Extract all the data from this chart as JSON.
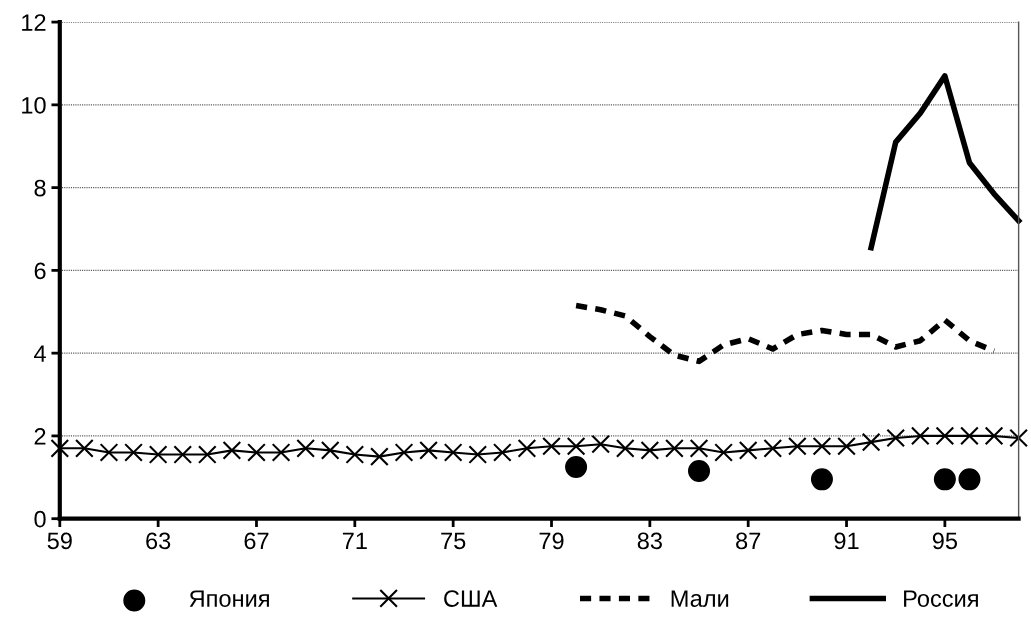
{
  "chart_data": {
    "type": "line",
    "xlim": [
      59,
      98
    ],
    "xticks": [
      59,
      63,
      67,
      71,
      75,
      79,
      83,
      87,
      91,
      95
    ],
    "ylim": [
      0,
      12
    ],
    "yticks": [
      0,
      2,
      4,
      6,
      8,
      10,
      12
    ],
    "grid": "y",
    "legend": "bottom",
    "series": [
      {
        "name": "Япония",
        "type": "scatter",
        "marker": "circle",
        "color": "#000000",
        "x": [
          80,
          85,
          90,
          95,
          96
        ],
        "values": [
          1.25,
          1.15,
          0.95,
          0.95,
          0.95
        ]
      },
      {
        "name": "США",
        "marker": "cross",
        "line_style": "solid",
        "color": "#000000",
        "x": [
          59,
          60,
          61,
          62,
          63,
          64,
          65,
          66,
          67,
          68,
          69,
          70,
          71,
          72,
          73,
          74,
          75,
          76,
          77,
          78,
          79,
          80,
          81,
          82,
          83,
          84,
          85,
          86,
          87,
          88,
          89,
          90,
          91,
          92,
          93,
          94,
          95,
          96,
          97,
          98
        ],
        "values": [
          1.7,
          1.7,
          1.6,
          1.6,
          1.55,
          1.55,
          1.55,
          1.65,
          1.6,
          1.6,
          1.7,
          1.65,
          1.55,
          1.5,
          1.6,
          1.65,
          1.6,
          1.55,
          1.6,
          1.7,
          1.75,
          1.75,
          1.8,
          1.7,
          1.65,
          1.7,
          1.7,
          1.6,
          1.65,
          1.7,
          1.75,
          1.75,
          1.75,
          1.85,
          1.95,
          2.0,
          2.0,
          2.0,
          2.0,
          1.95
        ]
      },
      {
        "name": "Мали",
        "marker": "none",
        "line_style": "dashed",
        "color": "#000000",
        "x": [
          80,
          81,
          82,
          83,
          84,
          85,
          86,
          87,
          88,
          89,
          90,
          91,
          92,
          93,
          94,
          95,
          96,
          97
        ],
        "values": [
          5.15,
          5.05,
          4.9,
          4.4,
          3.95,
          3.8,
          4.2,
          4.35,
          4.1,
          4.45,
          4.55,
          4.45,
          4.45,
          4.15,
          4.3,
          4.8,
          4.3,
          4.05
        ]
      },
      {
        "name": "Россия",
        "marker": "none",
        "line_style": "solid",
        "color": "#000000",
        "x": [
          92,
          93,
          94,
          95,
          96,
          97,
          98
        ],
        "values": [
          6.55,
          9.1,
          9.8,
          10.7,
          8.6,
          7.85,
          7.2
        ]
      }
    ]
  }
}
